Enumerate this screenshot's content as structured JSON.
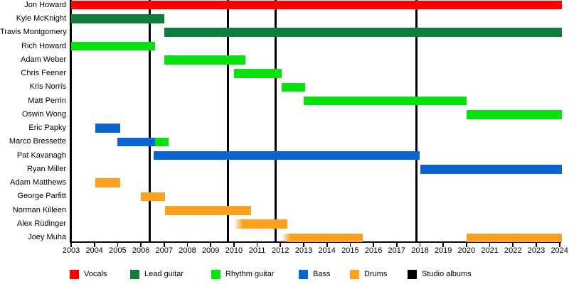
{
  "chart_data": {
    "type": "gantt",
    "description_visible_text_only": true,
    "x_axis": {
      "start": 2003,
      "end": 2024,
      "tick_years": [
        2003,
        2004,
        2005,
        2006,
        2007,
        2008,
        2009,
        2010,
        2011,
        2012,
        2013,
        2014,
        2015,
        2016,
        2017,
        2018,
        2019,
        2020,
        2021,
        2022,
        2023,
        2024
      ]
    },
    "legend": [
      {
        "label": "Vocals",
        "color": "#fb0000"
      },
      {
        "label": "Lead guitar",
        "color": "#0f7d3c"
      },
      {
        "label": "Rhythm guitar",
        "color": "#07e10c"
      },
      {
        "label": "Bass",
        "color": "#0b64cf"
      },
      {
        "label": "Drums",
        "color": "#fba11f"
      },
      {
        "label": "Studio albums",
        "color": "#000000"
      }
    ],
    "album_lines": {
      "legend_label": "Studio albums",
      "years": [
        2006.37,
        2009.74,
        2011.78,
        2017.85
      ]
    },
    "members": [
      {
        "name": "Jon Howard",
        "bars": [
          {
            "role": "Vocals",
            "start": 2003.0,
            "end": 2024.1
          }
        ]
      },
      {
        "name": "Kyle McKnight",
        "bars": [
          {
            "role": "Lead guitar",
            "start": 2003.0,
            "end": 2007.0
          }
        ]
      },
      {
        "name": "Travis Montgomery",
        "bars": [
          {
            "role": "Lead guitar",
            "start": 2007.0,
            "end": 2024.1
          }
        ]
      },
      {
        "name": "Rich Howard",
        "bars": [
          {
            "role": "Rhythm guitar",
            "start": 2003.0,
            "end": 2006.6
          }
        ]
      },
      {
        "name": "Adam Weber",
        "bars": [
          {
            "role": "Rhythm guitar",
            "start": 2007.0,
            "end": 2010.5
          }
        ]
      },
      {
        "name": "Chris Feener",
        "bars": [
          {
            "role": "Rhythm guitar",
            "start": 2010.0,
            "end": 2012.05
          }
        ]
      },
      {
        "name": "Kris Norris",
        "bars": [
          {
            "role": "Rhythm guitar",
            "start": 2012.05,
            "end": 2013.05
          }
        ]
      },
      {
        "name": "Matt Perrin",
        "bars": [
          {
            "role": "Rhythm guitar",
            "start": 2013.0,
            "end": 2020.0
          }
        ]
      },
      {
        "name": "Oswin Wong",
        "bars": [
          {
            "role": "Rhythm guitar",
            "start": 2020.0,
            "end": 2024.1
          }
        ]
      },
      {
        "name": "Eric Papky",
        "bars": [
          {
            "role": "Bass",
            "start": 2004.05,
            "end": 2005.1
          }
        ]
      },
      {
        "name": "Marco Bressette",
        "bars": [
          {
            "role": "Bass",
            "start": 2005.0,
            "end": 2006.6
          },
          {
            "role": "Rhythm guitar",
            "start": 2006.6,
            "end": 2007.2
          }
        ]
      },
      {
        "name": "Pat Kavanagh",
        "bars": [
          {
            "role": "Bass",
            "start": 2006.55,
            "end": 2018.0
          }
        ]
      },
      {
        "name": "Ryan Miller",
        "bars": [
          {
            "role": "Bass",
            "start": 2018.0,
            "end": 2024.1
          }
        ]
      },
      {
        "name": "Adam Matthews",
        "bars": [
          {
            "role": "Drums",
            "start": 2004.05,
            "end": 2005.1
          }
        ]
      },
      {
        "name": "George Parfitt",
        "bars": [
          {
            "role": "Drums",
            "start": 2006.0,
            "end": 2007.05
          }
        ]
      },
      {
        "name": "Norman Killeen",
        "bars": [
          {
            "role": "Drums",
            "start": 2007.05,
            "end": 2010.75
          }
        ]
      },
      {
        "name": "Alex Rüdinger",
        "bars": [
          {
            "role": "Drums",
            "start": 2010.0,
            "end": 2012.3,
            "fade_left": true
          }
        ]
      },
      {
        "name": "Joey Muha",
        "bars": [
          {
            "role": "Drums",
            "start": 2012.05,
            "end": 2015.55,
            "fade_left": true
          },
          {
            "role": "Drums",
            "start": 2020.0,
            "end": 2024.1
          }
        ]
      }
    ]
  }
}
